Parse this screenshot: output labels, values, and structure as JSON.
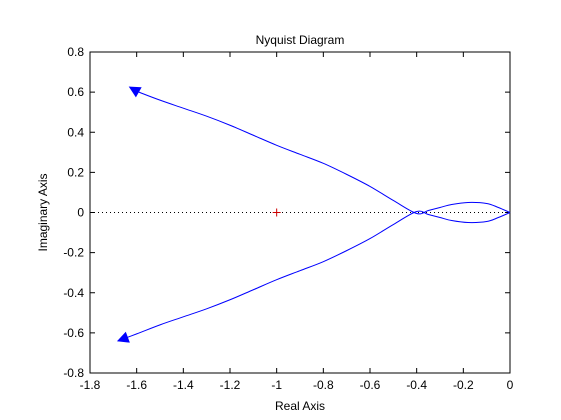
{
  "chart_data": {
    "type": "line",
    "title": "Nyquist Diagram",
    "xlabel": "Real Axis",
    "ylabel": "Imaginary Axis",
    "xlim": [
      -1.8,
      0
    ],
    "ylim": [
      -0.8,
      0.8
    ],
    "xticks": [
      -1.8,
      -1.6,
      -1.4,
      -1.2,
      -1,
      -0.8,
      -0.6,
      -0.4,
      -0.2,
      0
    ],
    "xtick_labels": [
      "-1.8",
      "-1.6",
      "-1.4",
      "-1.2",
      "-1",
      "-0.8",
      "-0.6",
      "-0.4",
      "-0.2",
      "0"
    ],
    "yticks": [
      0.8,
      0.6,
      0.4,
      0.2,
      0,
      -0.2,
      -0.4,
      -0.6,
      -0.8
    ],
    "ytick_labels": [
      "0.8",
      "0.6",
      "0.4",
      "0.2",
      "0",
      "-0.2",
      "-0.4",
      "-0.6",
      "-0.8"
    ],
    "grid": false,
    "zero_line": {
      "y": 0,
      "style": "dotted",
      "color": "#000000"
    },
    "critical_point": {
      "x": -1,
      "y": 0,
      "marker": "+",
      "color": "#cc0000"
    },
    "series": [
      {
        "color": "#0000ff",
        "x": [
          0,
          -0.05,
          -0.1,
          -0.18,
          -0.25,
          -0.3,
          -0.35,
          -0.4,
          -0.5,
          -0.6,
          -0.7,
          -0.8,
          -0.9,
          -1.0,
          -1.1,
          -1.2,
          -1.3,
          -1.4,
          -1.5,
          -1.6,
          -1.63
        ],
        "y": [
          0,
          0.025,
          0.045,
          0.05,
          0.04,
          0.025,
          0.01,
          -0.005,
          0.06,
          0.13,
          0.19,
          0.245,
          0.29,
          0.335,
          0.385,
          0.435,
          0.48,
          0.52,
          0.56,
          0.605,
          0.625
        ],
        "arrow_at_end": true
      },
      {
        "color": "#0000ff",
        "x": [
          0,
          -0.05,
          -0.1,
          -0.18,
          -0.25,
          -0.3,
          -0.35,
          -0.4,
          -0.5,
          -0.6,
          -0.7,
          -0.8,
          -0.9,
          -1.0,
          -1.1,
          -1.2,
          -1.3,
          -1.4,
          -1.5,
          -1.6,
          -1.68
        ],
        "y": [
          0,
          -0.025,
          -0.045,
          -0.05,
          -0.04,
          -0.025,
          -0.01,
          0.005,
          -0.06,
          -0.13,
          -0.19,
          -0.245,
          -0.29,
          -0.335,
          -0.385,
          -0.435,
          -0.48,
          -0.52,
          -0.56,
          -0.605,
          -0.64
        ],
        "arrow_at_end": true
      }
    ]
  }
}
